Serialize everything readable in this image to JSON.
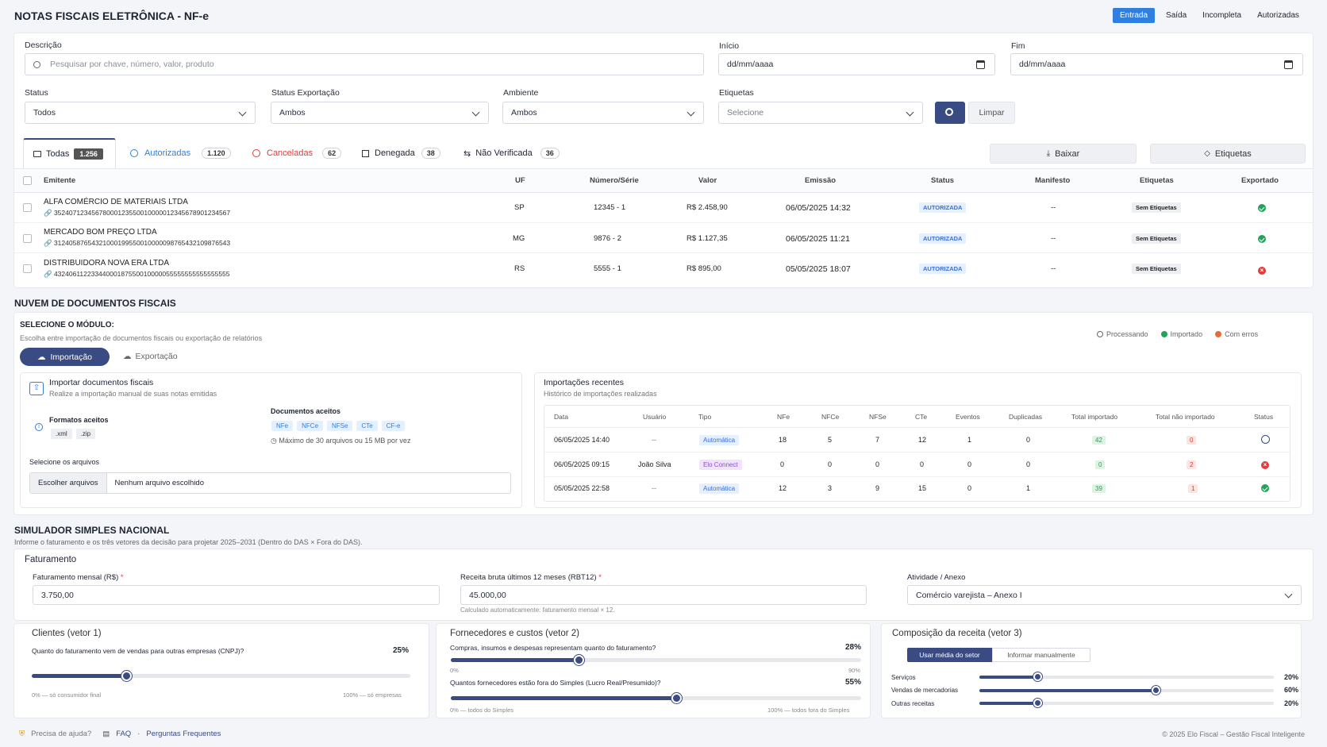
{
  "header": {
    "title": "NOTAS FISCAIS ELETRÔNICA - NF-e",
    "tabs": [
      "Entrada",
      "Saída",
      "Incompleta",
      "Autorizadas"
    ]
  },
  "filters": {
    "descricao_label": "Descrição",
    "descricao_placeholder": "Pesquisar por chave, número, valor, produto",
    "inicio_label": "Início",
    "inicio_value": "dd/mm/aaaa",
    "fim_label": "Fim",
    "fim_value": "dd/mm/aaaa",
    "status_label": "Status",
    "status_value": "Todos",
    "status_exp_label": "Status Exportação",
    "status_exp_value": "Ambos",
    "ambiente_label": "Ambiente",
    "ambiente_value": "Ambos",
    "etiquetas_label": "Etiquetas",
    "etiquetas_value": "Selecione",
    "limpar": "Limpar"
  },
  "status_tabs": [
    {
      "label": "Todas",
      "count": "1.256"
    },
    {
      "label": "Autorizadas",
      "count": "1.120"
    },
    {
      "label": "Canceladas",
      "count": "62"
    },
    {
      "label": "Denegada",
      "count": "38"
    },
    {
      "label": "Não Verificada",
      "count": "36"
    }
  ],
  "actions": {
    "baixar": "Baixar",
    "etiquetas": "Etiquetas"
  },
  "table": {
    "columns": [
      "Emitente",
      "UF",
      "Número/Série",
      "Valor",
      "Emissão",
      "Status",
      "Manifesto",
      "Etiquetas",
      "Exportado"
    ],
    "rows": [
      {
        "emitente": "ALFA COMÉRCIO DE MATERIAIS LTDA",
        "chave": "35240712345678000123550010000012345678901234567",
        "uf": "SP",
        "numero": "12345 - 1",
        "valor": "R$ 2.458,90",
        "emissao": "06/05/2025 14:32",
        "status": "AUTORIZADA",
        "manifesto": "--",
        "etiquetas": "Sem Etiquetas",
        "exportado": "ok"
      },
      {
        "emitente": "MERCADO BOM PREÇO LTDA",
        "chave": "31240587654321000199550010000098765432109876543",
        "uf": "MG",
        "numero": "9876 - 2",
        "valor": "R$ 1.127,35",
        "emissao": "06/05/2025 11:21",
        "status": "AUTORIZADA",
        "manifesto": "--",
        "etiquetas": "Sem Etiquetas",
        "exportado": "ok"
      },
      {
        "emitente": "DISTRIBUIDORA NOVA ERA LTDA",
        "chave": "43240611223344000187550010000055555555555555555",
        "uf": "RS",
        "numero": "5555 - 1",
        "valor": "R$ 895,00",
        "emissao": "05/05/2025 18:07",
        "status": "AUTORIZADA",
        "manifesto": "--",
        "etiquetas": "Sem Etiquetas",
        "exportado": "err"
      }
    ]
  },
  "nuvem": {
    "title": "NUVEM DE DOCUMENTOS FISCAIS",
    "select_title": "SELECIONE O MÓDULO:",
    "select_sub": "Escolha entre importação de documentos fiscais ou exportação de relatórios",
    "legend": [
      "Processando",
      "Importado",
      "Com erros"
    ],
    "btn_import": "Importação",
    "btn_export": "Exportação",
    "import_title": "Importar documentos fiscais",
    "import_sub": "Realize a importação manual de suas notas emitidas",
    "formatos_label": "Formatos aceitos",
    "formatos": [
      ".xml",
      ".zip"
    ],
    "docs_label": "Documentos aceitos",
    "docs": [
      "NFe",
      "NFCe",
      "NFSe",
      "CTe",
      "CF-e"
    ],
    "max_text": "Máximo de 30 arquivos ou 15 MB por vez",
    "select_files_label": "Selecione os arquivos",
    "choose_btn": "Escolher arquivos",
    "no_file": "Nenhum arquivo escolhido",
    "recent_title": "Importações recentes",
    "recent_sub": "Histórico de importações realizadas",
    "recent_cols": [
      "Data",
      "Usuário",
      "Tipo",
      "NFe",
      "NFCe",
      "NFSe",
      "CTe",
      "Eventos",
      "Duplicadas",
      "Total importado",
      "Total não importado",
      "Status"
    ],
    "recent_rows": [
      {
        "data": "06/05/2025 14:40",
        "usuario": "--",
        "tipo": "Automática",
        "nfe": "18",
        "nfce": "5",
        "nfse": "7",
        "cte": "12",
        "eventos": "1",
        "dup": "0",
        "imp": "42",
        "nimp": "0",
        "status": "proc"
      },
      {
        "data": "06/05/2025 09:15",
        "usuario": "João Silva",
        "tipo": "Elo Connect",
        "nfe": "0",
        "nfce": "0",
        "nfse": "0",
        "cte": "0",
        "eventos": "0",
        "dup": "0",
        "imp": "0",
        "nimp": "2",
        "status": "err"
      },
      {
        "data": "05/05/2025 22:58",
        "usuario": "--",
        "tipo": "Automática",
        "nfe": "12",
        "nfce": "3",
        "nfse": "9",
        "cte": "15",
        "eventos": "0",
        "dup": "1",
        "imp": "39",
        "nimp": "1",
        "status": "ok"
      }
    ]
  },
  "simulador": {
    "title": "SIMULADOR SIMPLES NACIONAL",
    "sub": "Informe o faturamento e os três vetores da decisão para projetar 2025–2031 (Dentro do DAS × Fora do DAS).",
    "fat_title": "Faturamento",
    "fat_mensal_label": "Faturamento mensal (R$)",
    "fat_mensal_value": "3.750,00",
    "rbt_label": "Receita bruta últimos 12 meses (RBT12)",
    "rbt_value": "45.000,00",
    "rbt_hint": "Calculado automaticamente: faturamento mensal × 12.",
    "atividade_label": "Atividade / Anexo",
    "atividade_value": "Comércio varejista – Anexo I",
    "v1": {
      "title": "Clientes (vetor 1)",
      "question": "Quanto do faturamento vem de vendas para outras empresas (CNPJ)?",
      "pct": "25%",
      "value": 0.25,
      "min": "0% — só consumidor final",
      "max": "100% — só empresas"
    },
    "v2": {
      "title": "Fornecedores e custos (vetor 2)",
      "q1": "Compras, insumos e despesas representam quanto do faturamento?",
      "p1": "28%",
      "v1": 0.28,
      "min1": "0%",
      "max1": "90%",
      "q2": "Quantos fornecedores estão fora do Simples (Lucro Real/Presumido)?",
      "p2": "55%",
      "v2": 0.55,
      "min2": "0% — todos do Simples",
      "max2": "100% — todos fora do Simples"
    },
    "v3": {
      "title": "Composição da receita (vetor 3)",
      "btn_media": "Usar média do setor",
      "btn_manual": "Informar manualmente",
      "items": [
        {
          "label": "Serviços",
          "pct": "20%",
          "value": 0.2
        },
        {
          "label": "Vendas de mercadorias",
          "pct": "60%",
          "value": 0.6
        },
        {
          "label": "Outras receitas",
          "pct": "20%",
          "value": 0.2
        }
      ]
    }
  },
  "footer": {
    "help": "Precisa de ajuda?",
    "faq": "FAQ",
    "perguntas": "Perguntas Frequentes",
    "copyright": "© 2025 Elo Fiscal – Gestão Fiscal Inteligente"
  },
  "colors": {
    "primary": "#3a4a82",
    "blue": "#2f7fe0",
    "red": "#e03b3b",
    "green": "#22a35a"
  }
}
